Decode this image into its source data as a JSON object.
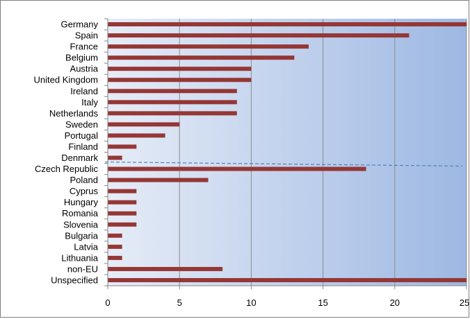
{
  "chart_data": {
    "type": "bar",
    "orientation": "horizontal",
    "categories": [
      "Germany",
      "Spain",
      "France",
      "Belgium",
      "Austria",
      "United Kingdom",
      "Ireland",
      "Italy",
      "Netherlands",
      "Sweden",
      "Portugal",
      "Finland",
      "Denmark",
      "Czech Republic",
      "Poland",
      "Cyprus",
      "Hungary",
      "Romania",
      "Slovenia",
      "Bulgaria",
      "Latvia",
      "Lithuania",
      "non-EU",
      "Unspecified"
    ],
    "values": [
      25,
      21,
      14,
      13,
      10,
      10,
      9,
      9,
      9,
      5,
      4,
      2,
      1,
      18,
      7,
      2,
      2,
      2,
      2,
      1,
      1,
      1,
      8,
      25
    ],
    "x_ticks": [
      0,
      5,
      10,
      15,
      20,
      25
    ],
    "xlim": [
      0,
      25
    ],
    "grid": "vertical",
    "separator": {
      "style": "dashed",
      "between": [
        "Denmark",
        "Czech Republic"
      ]
    },
    "colors": {
      "bar": "#953735",
      "plot_bg_left": "#e6ecf7",
      "plot_bg_right": "#9db8e3",
      "grid": "#8c8c8c",
      "separator": "#4f81bd"
    },
    "title": "",
    "xlabel": "",
    "ylabel": ""
  }
}
